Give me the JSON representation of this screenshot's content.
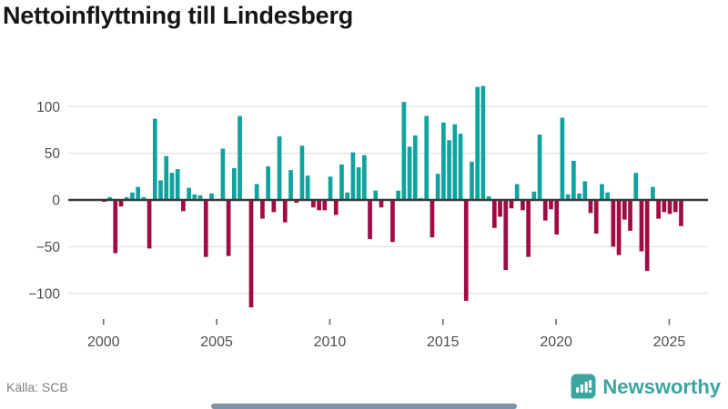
{
  "header": {
    "title": "Nettoinflyttning till Lindesberg"
  },
  "footer": {
    "source": "Källa: SCB",
    "brand": "Newsworthy"
  },
  "colors": {
    "positive_bar": "#0fa3a0",
    "negative_bar": "#a10b45",
    "zero_axis": "#3a3a3a",
    "gridline": "#e5e5e5",
    "tick_label": "#4f4f4f",
    "title_text": "#161616",
    "source_text": "#7f7f7f",
    "brand_teal": "#3ba49e",
    "bottom_bar": "#7e93a9"
  },
  "chart_data": {
    "type": "bar",
    "title": "Nettoinflyttning till Lindesberg",
    "xlabel": "",
    "ylabel": "",
    "period": "quarterly",
    "start_quarter": "2000 Q1",
    "end_quarter": "2025 Q3",
    "x_tick_years": [
      2000,
      2005,
      2010,
      2015,
      2020,
      2025
    ],
    "y_ticks": [
      100,
      50,
      0,
      -50,
      -100
    ],
    "ylim": [
      -125,
      130
    ],
    "grid": true,
    "legend": "none",
    "values": [
      -2,
      3,
      -57,
      -7,
      3,
      8,
      14,
      3,
      -52,
      87,
      21,
      47,
      29,
      33,
      -12,
      13,
      6,
      5,
      -61,
      7,
      0,
      55,
      -60,
      34,
      90,
      0,
      -115,
      17,
      -20,
      36,
      -13,
      68,
      -24,
      32,
      -3,
      58,
      26,
      -8,
      -11,
      -11,
      25,
      -16,
      38,
      8,
      51,
      35,
      48,
      -42,
      10,
      -8,
      0,
      -45,
      10,
      105,
      57,
      69,
      2,
      90,
      -40,
      28,
      83,
      64,
      81,
      71,
      -108,
      41,
      121,
      122,
      4,
      -30,
      -18,
      -75,
      -9,
      17,
      -11,
      -61,
      9,
      70,
      -22,
      -10,
      -37,
      88,
      6,
      42,
      7,
      20,
      -14,
      -36,
      17,
      8,
      -50,
      -59,
      -21,
      -33,
      29,
      -55,
      -76,
      14,
      -20,
      -13,
      -15,
      -13,
      -28
    ]
  }
}
